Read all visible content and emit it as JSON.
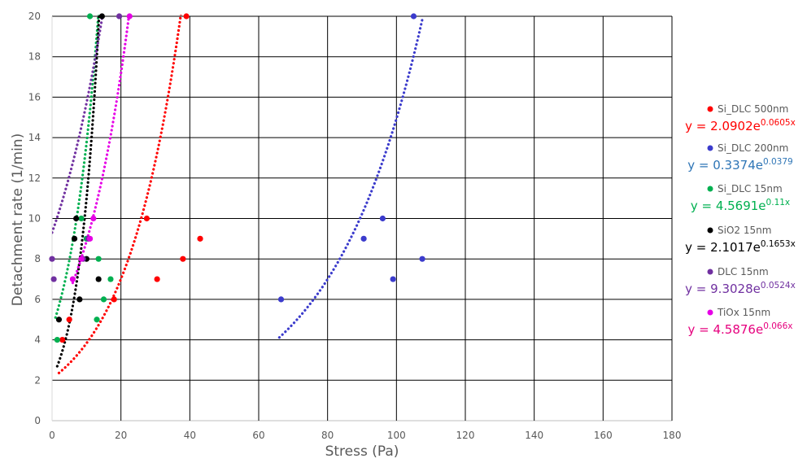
{
  "chart_data": {
    "type": "scatter",
    "xlabel": "Stress (Pa)",
    "ylabel": "Detachment rate (1/min)",
    "xlim": [
      0,
      180
    ],
    "ylim": [
      0,
      20
    ],
    "x_ticks": [
      0,
      20,
      40,
      60,
      80,
      100,
      120,
      140,
      160,
      180
    ],
    "y_ticks": [
      0,
      2,
      4,
      6,
      8,
      10,
      12,
      14,
      16,
      18,
      20
    ],
    "grid": true,
    "legend_position": "right",
    "series": [
      {
        "name": "Si_DLC 500nm",
        "color": "#ff0000",
        "marker": "circle",
        "points": [
          [
            3,
            4
          ],
          [
            5,
            5
          ],
          [
            18,
            6
          ],
          [
            30.5,
            7
          ],
          [
            38,
            8
          ],
          [
            43,
            9
          ],
          [
            27.5,
            10
          ],
          [
            39,
            20
          ]
        ],
        "trendline": {
          "equation_prefix": "y = 2.0902e",
          "exponent_label": "0.0605x",
          "a": 2.0902,
          "b": 0.0605,
          "x_range": [
            2,
            37.5
          ]
        }
      },
      {
        "name": "Si_DLC 200nm",
        "color": "#3b3bcc",
        "marker": "circle",
        "points": [
          [
            66.5,
            6
          ],
          [
            99,
            7
          ],
          [
            107.5,
            8
          ],
          [
            90.5,
            9
          ],
          [
            96,
            10
          ],
          [
            105,
            20
          ]
        ],
        "trendline": {
          "equation_prefix": "y = 0.3374e",
          "exponent_label": "0.0379",
          "a": 0.3374,
          "b": 0.0379,
          "x_range": [
            66,
            107.5
          ]
        }
      },
      {
        "name": "Si_DLC 15nm",
        "color": "#00b050",
        "marker": "circle",
        "points": [
          [
            1.5,
            4
          ],
          [
            13,
            5
          ],
          [
            15,
            6
          ],
          [
            17,
            7
          ],
          [
            13.5,
            8
          ],
          [
            10,
            9
          ],
          [
            8.5,
            10
          ],
          [
            11,
            20
          ]
        ],
        "trendline": {
          "equation_prefix": "y = 4.5691e",
          "exponent_label": "0.11x",
          "a": 4.5691,
          "b": 0.11,
          "x_range": [
            1,
            13.5
          ]
        }
      },
      {
        "name": "SiO2 15nm",
        "color": "#000000",
        "marker": "circle",
        "points": [
          [
            2,
            5
          ],
          [
            8,
            6
          ],
          [
            13.5,
            7
          ],
          [
            10,
            8
          ],
          [
            6.5,
            9
          ],
          [
            7,
            10
          ],
          [
            14.5,
            20
          ]
        ],
        "trendline": {
          "equation_prefix": "y = 2.1017e",
          "exponent_label": "0.1653x",
          "a": 2.1017,
          "b": 0.1653,
          "x_range": [
            1.5,
            13.7
          ]
        }
      },
      {
        "name": "DLC 15nm",
        "color": "#7030a0",
        "marker": "circle",
        "points": [
          [
            0.5,
            7
          ],
          [
            0,
            8
          ],
          [
            10.5,
            9
          ],
          [
            9,
            8
          ],
          [
            19.5,
            20
          ]
        ],
        "trendline": {
          "equation_prefix": "y = 9.3028e",
          "exponent_label": "0.0524x",
          "a": 9.3028,
          "b": 0.0524,
          "x_range": [
            0,
            14.5
          ]
        }
      },
      {
        "name": "TiOx 15nm",
        "color": "#e600e6",
        "marker": "circle",
        "points": [
          [
            6,
            7
          ],
          [
            8.5,
            8
          ],
          [
            11,
            9
          ],
          [
            12,
            10
          ],
          [
            22.5,
            20
          ]
        ],
        "trendline": {
          "equation_prefix": "y = 4.5876e",
          "exponent_label": "0.066x",
          "a": 4.5876,
          "b": 0.066,
          "x_range": [
            6,
            22.3
          ]
        }
      }
    ]
  },
  "legend_entries": [
    {
      "name": "Si_DLC 500nm",
      "color": "#ff0000",
      "eq_prefix": "y = 2.0902e",
      "eq_exp": "0.0605x",
      "eq_color": "#ff0000"
    },
    {
      "name": "Si_DLC 200nm",
      "color": "#3b3bcc",
      "eq_prefix": "y = 0.3374e",
      "eq_exp": "0.0379",
      "eq_color": "#2e75b6"
    },
    {
      "name": "Si_DLC 15nm",
      "color": "#00b050",
      "eq_prefix": "y = 4.5691e",
      "eq_exp": "0.11x",
      "eq_color": "#00b050"
    },
    {
      "name": "SiO2 15nm",
      "color": "#000000",
      "eq_prefix": "y = 2.1017e",
      "eq_exp": "0.1653x",
      "eq_color": "#000000"
    },
    {
      "name": "DLC 15nm",
      "color": "#7030a0",
      "eq_prefix": "y = 9.3028e",
      "eq_exp": "0.0524x",
      "eq_color": "#7030a0"
    },
    {
      "name": "TiOx 15nm",
      "color": "#e600e6",
      "eq_prefix": "y = 4.5876e",
      "eq_exp": "0.066x",
      "eq_color": "#e6007e"
    }
  ]
}
